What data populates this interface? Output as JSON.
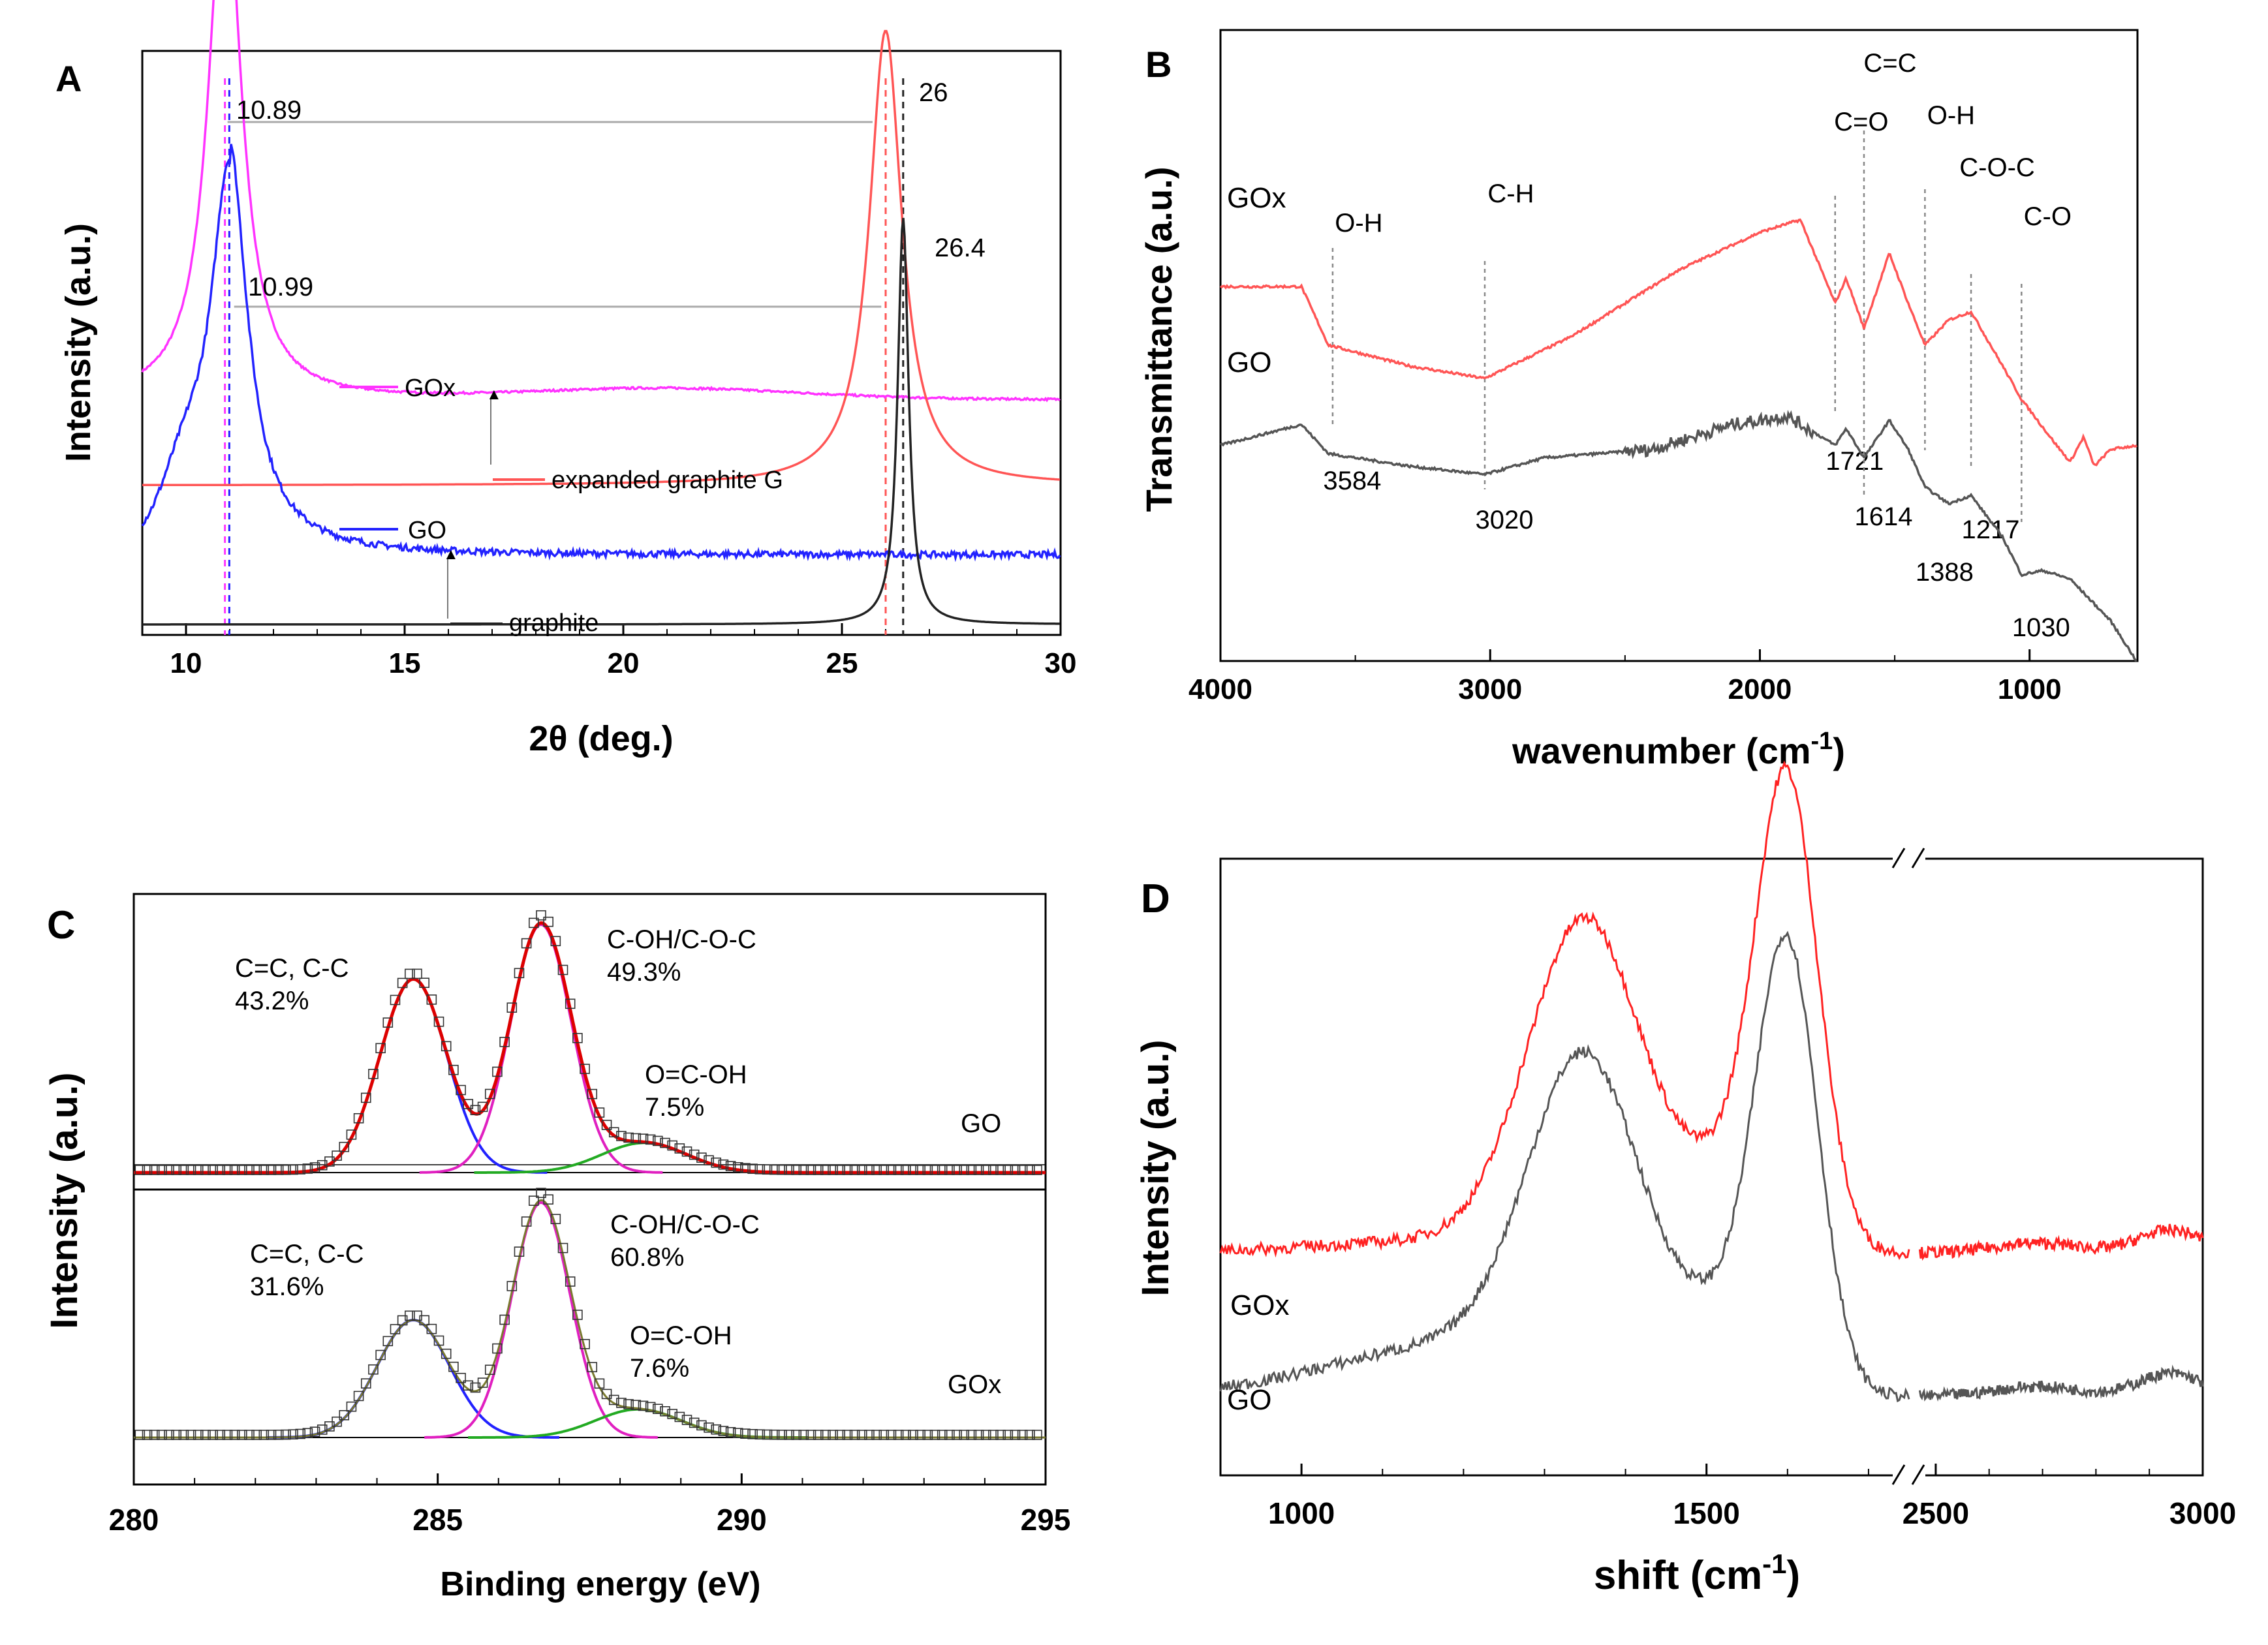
{
  "colors": {
    "pink": "#ff33ff",
    "red": "#ff5555",
    "blue": "#2222ff",
    "black": "#222222",
    "grey": "#555555",
    "darkred": "#dd0000",
    "green": "#22aa22",
    "magenta": "#e020c0",
    "raman_red": "#ff2222"
  },
  "chart_data": [
    {
      "type": "line",
      "panel": "A",
      "xlabel": "2θ (deg.)",
      "ylabel": "Intensity (a.u.)",
      "xlim": [
        9,
        30
      ],
      "xticks": [
        "10",
        "15",
        "20",
        "25",
        "30"
      ],
      "series": [
        {
          "name": "GOx",
          "peaks": [
            {
              "center": 10.89,
              "height": 1.0,
              "width": 0.45
            }
          ],
          "baseline": 0.42
        },
        {
          "name": "expanded graphite G",
          "peaks": [
            {
              "center": 26.0,
              "height": 0.85,
              "width": 0.45
            }
          ],
          "baseline": 0.26
        },
        {
          "name": "GO",
          "peaks": [
            {
              "center": 10.99,
              "height": 0.72,
              "width": 0.5
            }
          ],
          "baseline": 0.13
        },
        {
          "name": "graphite",
          "peaks": [
            {
              "center": 26.4,
              "height": 0.76,
              "width": 0.15
            }
          ],
          "baseline": 0.0
        }
      ],
      "peak_labels": [
        "10.89",
        "10.99",
        "26",
        "26.4"
      ]
    },
    {
      "type": "line",
      "panel": "B",
      "xlabel": "wavenumber (cm",
      "xlabel_sup": "-1",
      "xlabel_end": ")",
      "ylabel": "Transmittance (a.u.)",
      "xlim": [
        4000,
        600
      ],
      "xticks": [
        "4000",
        "3000",
        "2000",
        "1000"
      ],
      "series": [
        {
          "name": "GOx",
          "points": [
            [
              4000,
              0.72
            ],
            [
              3700,
              0.72
            ],
            [
              3600,
              0.58
            ],
            [
              3300,
              0.53
            ],
            [
              3020,
              0.5
            ],
            [
              2700,
              0.6
            ],
            [
              2300,
              0.76
            ],
            [
              2000,
              0.85
            ],
            [
              1850,
              0.88
            ],
            [
              1721,
              0.68
            ],
            [
              1680,
              0.74
            ],
            [
              1614,
              0.62
            ],
            [
              1520,
              0.8
            ],
            [
              1450,
              0.68
            ],
            [
              1388,
              0.58
            ],
            [
              1300,
              0.64
            ],
            [
              1217,
              0.66
            ],
            [
              1100,
              0.53
            ],
            [
              1030,
              0.45
            ],
            [
              900,
              0.34
            ],
            [
              850,
              0.3
            ],
            [
              800,
              0.36
            ],
            [
              760,
              0.29
            ],
            [
              700,
              0.33
            ],
            [
              600,
              0.34
            ]
          ]
        },
        {
          "name": "GO",
          "points": [
            [
              4000,
              0.34
            ],
            [
              3700,
              0.39
            ],
            [
              3600,
              0.32
            ],
            [
              3300,
              0.29
            ],
            [
              3020,
              0.27
            ],
            [
              2800,
              0.31
            ],
            [
              2400,
              0.33
            ],
            [
              2100,
              0.39
            ],
            [
              1900,
              0.41
            ],
            [
              1721,
              0.34
            ],
            [
              1680,
              0.38
            ],
            [
              1614,
              0.31
            ],
            [
              1520,
              0.4
            ],
            [
              1450,
              0.33
            ],
            [
              1388,
              0.24
            ],
            [
              1300,
              0.2
            ],
            [
              1217,
              0.22
            ],
            [
              1100,
              0.12
            ],
            [
              1030,
              0.03
            ],
            [
              950,
              0.04
            ],
            [
              850,
              0.02
            ],
            [
              700,
              -0.08
            ],
            [
              600,
              -0.18
            ]
          ]
        }
      ],
      "band_labels": [
        "O-H",
        "C-H",
        "C=O",
        "C=C",
        "O-H",
        "C-O-C",
        "C-O"
      ],
      "band_positions": [
        3584,
        3020,
        1721,
        1614,
        1388,
        1217,
        1030
      ],
      "band_values": [
        "3584",
        "3020",
        "1721",
        "1614",
        "1388",
        "1217",
        "1030"
      ]
    },
    {
      "type": "line",
      "panel": "C",
      "xlabel": "Binding energy (eV)",
      "ylabel": "Intensity (a.u.)",
      "xlim": [
        280,
        295
      ],
      "xticks": [
        "280",
        "285",
        "290",
        "295"
      ],
      "subplots": [
        {
          "name": "GO",
          "components": [
            {
              "label": "C=C, C-C",
              "percent": "43.2%",
              "center": 284.6,
              "height": 0.78,
              "sigma": 0.55
            },
            {
              "label": "C-OH/C-O-C",
              "percent": "49.3%",
              "center": 286.7,
              "height": 1.0,
              "sigma": 0.5
            },
            {
              "label": "O=C-OH",
              "percent": "7.5%",
              "center": 288.4,
              "height": 0.12,
              "sigma": 0.7
            }
          ]
        },
        {
          "name": "GOx",
          "components": [
            {
              "label": "C=C, C-C",
              "percent": "31.6%",
              "center": 284.6,
              "height": 0.5,
              "sigma": 0.6
            },
            {
              "label": "C-OH/C-O-C",
              "percent": "60.8%",
              "center": 286.7,
              "height": 1.0,
              "sigma": 0.48
            },
            {
              "label": "O=C-OH",
              "percent": "7.6%",
              "center": 288.3,
              "height": 0.12,
              "sigma": 0.7
            }
          ]
        }
      ]
    },
    {
      "type": "line",
      "panel": "D",
      "xlabel": "shift (cm",
      "xlabel_sup": "-1",
      "xlabel_end": ")",
      "ylabel": "Intensity (a.u.)",
      "xlim_segment1": [
        900,
        1750
      ],
      "xlim_segment2": [
        2450,
        3000
      ],
      "xticks": [
        "1000",
        "1500",
        "2500",
        "3000"
      ],
      "series": [
        {
          "name": "GOx",
          "D_band": 1350,
          "G_band": 1600,
          "baseline": 0.32
        },
        {
          "name": "GO",
          "D_band": 1350,
          "G_band": 1600,
          "baseline": 0.1
        }
      ]
    }
  ]
}
